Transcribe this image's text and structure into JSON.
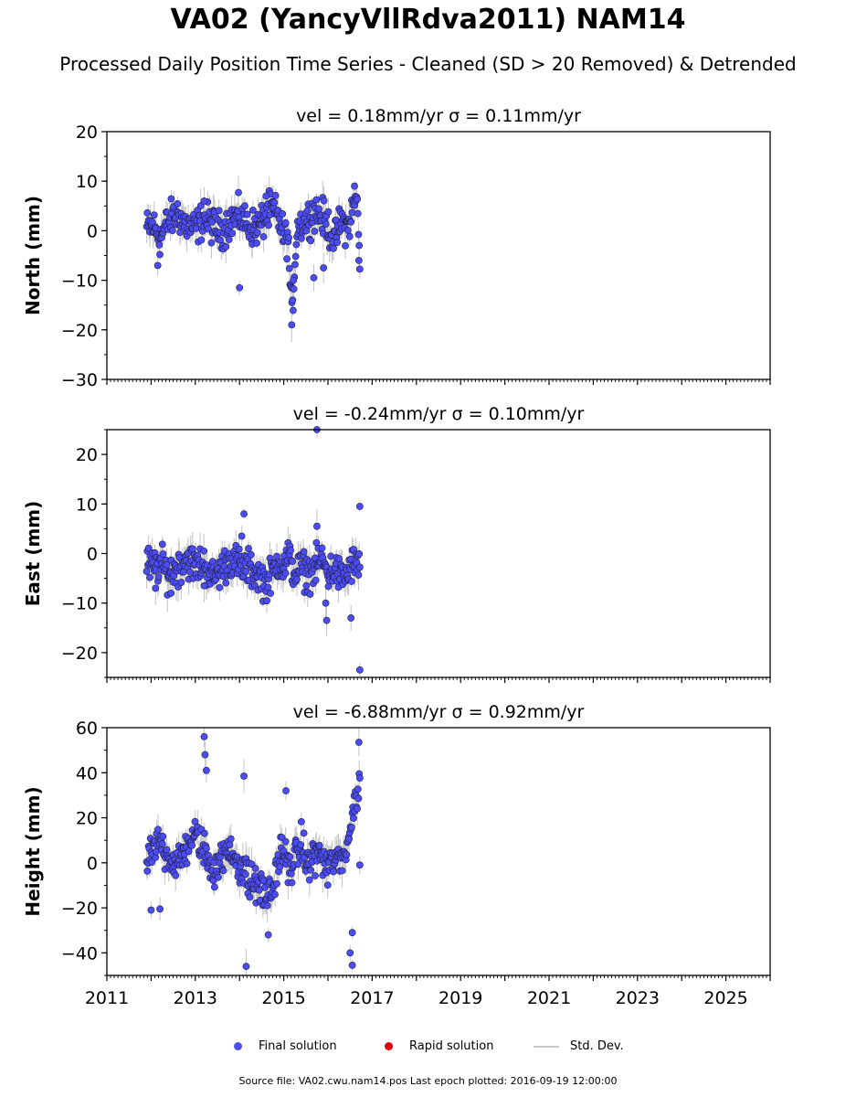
{
  "header": {
    "title": "VA02 (YancyVllRdva2011) NAM14",
    "subtitle": "Processed Daily Position Time Series - Cleaned (SD > 20 Removed) & Detrended"
  },
  "legend": {
    "final": "Final solution",
    "rapid": "Rapid solution",
    "std": "Std. Dev.",
    "final_color": "#4c4cf5",
    "rapid_color": "#e00000",
    "std_color": "#c8c8c8"
  },
  "footer": {
    "text": "Source file: VA02.cwu.nam14.pos  Last epoch plotted: 2016-09-19 12:00:00"
  },
  "chart_data": [
    {
      "type": "scatter",
      "title": "vel = 0.18mm/yr   σ = 0.11mm/yr",
      "ylabel": "North (mm)",
      "xlim": [
        2011.0,
        2026.0
      ],
      "ylim": [
        -30,
        20
      ],
      "yticks": [
        20,
        10,
        0,
        -10,
        -20,
        -30
      ],
      "ytick_labels": [
        "20",
        "10",
        "0",
        "−10",
        "−20",
        "−30"
      ],
      "data_start": 2011.9,
      "data_end": 2016.72,
      "series": [
        {
          "name": "Final solution",
          "x": [
            2011.9,
            2012.05,
            2012.2,
            2012.4,
            2012.6,
            2012.8,
            2013.0,
            2013.2,
            2013.4,
            2013.6,
            2013.8,
            2014.0,
            2014.2,
            2014.4,
            2014.6,
            2014.75,
            2014.9,
            2015.0,
            2015.1,
            2015.18,
            2015.3,
            2015.5,
            2015.7,
            2015.85,
            2016.0,
            2016.15,
            2016.3,
            2016.45,
            2016.55,
            2016.65,
            2016.72
          ],
          "y": [
            0.5,
            1.0,
            -1.5,
            2.0,
            3.5,
            1.0,
            0.5,
            2.5,
            1.0,
            0.0,
            2.0,
            3.0,
            1.0,
            0.5,
            3.0,
            4.5,
            2.0,
            -1.0,
            -1.5,
            -17.5,
            1.0,
            2.0,
            4.0,
            3.0,
            1.0,
            -2.0,
            2.0,
            0.5,
            4.0,
            7.0,
            -5.0
          ]
        }
      ],
      "outliers": [
        [
          2012.15,
          -7.0
        ],
        [
          2014.0,
          -11.5
        ],
        [
          2015.18,
          -19.0
        ],
        [
          2015.2,
          -14.0
        ],
        [
          2015.22,
          -10.0
        ],
        [
          2015.68,
          -9.5
        ],
        [
          2015.9,
          -7.5
        ],
        [
          2016.7,
          -6.0
        ],
        [
          2014.6,
          7.0
        ],
        [
          2016.6,
          9.0
        ],
        [
          2013.2,
          6.0
        ]
      ]
    },
    {
      "type": "scatter",
      "title": "vel = -0.24mm/yr   σ = 0.10mm/yr",
      "ylabel": "East (mm)",
      "xlim": [
        2011.0,
        2026.0
      ],
      "ylim": [
        -25,
        25
      ],
      "yticks": [
        20,
        10,
        0,
        -10,
        -20
      ],
      "ytick_labels": [
        "20",
        "10",
        "0",
        "−10",
        "−20"
      ],
      "data_start": 2011.9,
      "data_end": 2016.72,
      "series": [
        {
          "name": "Final solution",
          "x": [
            2011.9,
            2012.05,
            2012.2,
            2012.4,
            2012.6,
            2012.8,
            2013.0,
            2013.2,
            2013.4,
            2013.6,
            2013.8,
            2014.0,
            2014.2,
            2014.4,
            2014.6,
            2014.75,
            2014.9,
            2015.0,
            2015.1,
            2015.25,
            2015.4,
            2015.55,
            2015.7,
            2015.85,
            2016.0,
            2016.15,
            2016.3,
            2016.45,
            2016.55,
            2016.65,
            2016.72
          ],
          "y": [
            -2.0,
            -3.0,
            -2.0,
            -4.0,
            -3.0,
            -1.0,
            -2.5,
            -2.0,
            -5.0,
            -3.0,
            -1.0,
            -2.5,
            -3.0,
            -4.0,
            -6.0,
            -4.0,
            -1.0,
            -3.0,
            -0.5,
            -4.0,
            -3.0,
            -4.0,
            -3.0,
            -1.0,
            -4.0,
            -3.0,
            -5.0,
            -4.0,
            -2.0,
            -3.0,
            -1.0
          ]
        }
      ],
      "outliers": [
        [
          2015.75,
          25.0
        ],
        [
          2014.1,
          8.0
        ],
        [
          2014.05,
          3.5
        ],
        [
          2015.75,
          5.5
        ],
        [
          2016.72,
          9.5
        ],
        [
          2016.72,
          -23.5
        ],
        [
          2015.97,
          -13.5
        ],
        [
          2016.52,
          -13.0
        ],
        [
          2015.95,
          -10.0
        ],
        [
          2012.1,
          -7.0
        ],
        [
          2012.45,
          -8.0
        ],
        [
          2013.2,
          -6.5
        ]
      ]
    },
    {
      "type": "scatter",
      "title": "vel = -6.88mm/yr   σ = 0.92mm/yr",
      "ylabel": "Height (mm)",
      "xlim": [
        2011.0,
        2026.0
      ],
      "ylim": [
        -50,
        60
      ],
      "yticks": [
        60,
        40,
        20,
        0,
        -20,
        -40
      ],
      "ytick_labels": [
        "60",
        "40",
        "20",
        "0",
        "−20",
        "−40"
      ],
      "data_start": 2011.9,
      "data_end": 2016.72,
      "series": [
        {
          "name": "Final solution",
          "x": [
            2011.9,
            2012.05,
            2012.2,
            2012.4,
            2012.6,
            2012.8,
            2013.0,
            2013.2,
            2013.4,
            2013.6,
            2013.8,
            2014.0,
            2014.2,
            2014.4,
            2014.6,
            2014.75,
            2014.9,
            2015.0,
            2015.1,
            2015.25,
            2015.4,
            2015.55,
            2015.7,
            2015.85,
            2016.0,
            2016.15,
            2016.3,
            2016.45,
            2016.55,
            2016.65,
            2016.72
          ],
          "y": [
            0.0,
            5.0,
            10.0,
            3.0,
            -2.0,
            8.0,
            12.0,
            5.0,
            -3.0,
            2.0,
            5.0,
            0.0,
            -8.0,
            -10.0,
            -15.0,
            -12.0,
            3.0,
            5.0,
            -3.0,
            2.0,
            8.0,
            -2.0,
            5.0,
            3.0,
            -3.0,
            2.0,
            0.0,
            10.0,
            20.0,
            30.0,
            35.0
          ]
        }
      ],
      "outliers": [
        [
          2013.2,
          56.0
        ],
        [
          2013.22,
          48.0
        ],
        [
          2013.25,
          41.0
        ],
        [
          2014.1,
          38.5
        ],
        [
          2015.05,
          32.0
        ],
        [
          2016.7,
          53.5
        ],
        [
          2014.15,
          -46.0
        ],
        [
          2016.55,
          -45.5
        ],
        [
          2016.5,
          -40.0
        ],
        [
          2016.55,
          -31.0
        ],
        [
          2014.65,
          -32.0
        ],
        [
          2012.0,
          -21.0
        ],
        [
          2012.2,
          -20.5
        ],
        [
          2016.72,
          -1.0
        ]
      ]
    }
  ],
  "x_axis": {
    "tick_labels": [
      "2011",
      "2013",
      "2015",
      "2017",
      "2019",
      "2021",
      "2023",
      "2025"
    ]
  }
}
